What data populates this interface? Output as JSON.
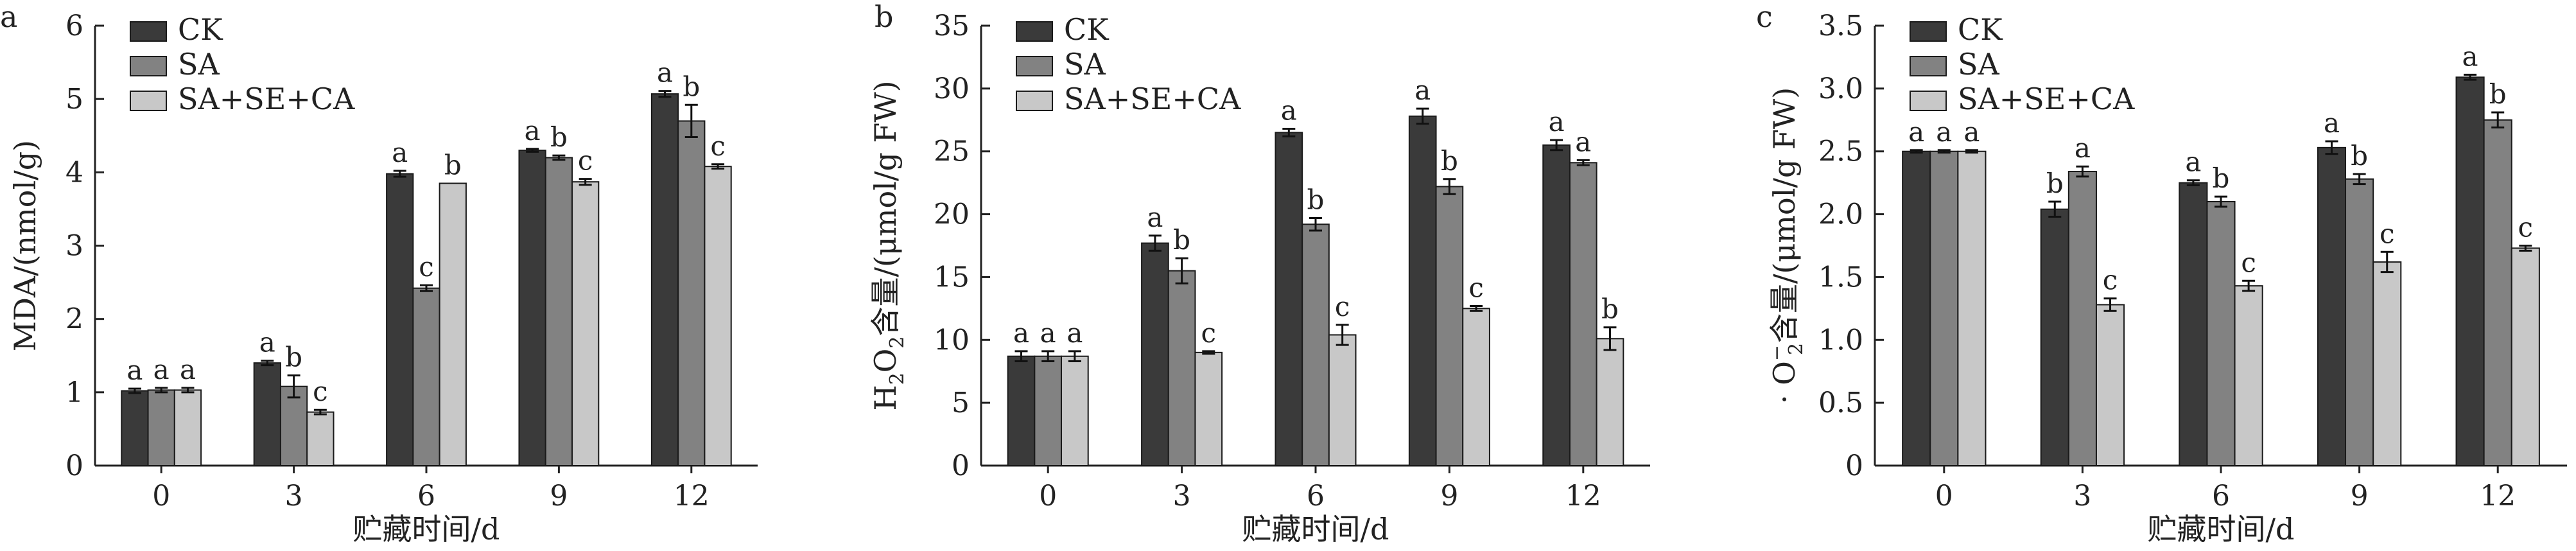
{
  "colors": {
    "CK": "#3a3a3a",
    "SA": "#828282",
    "SA+SE+CA": "#c8c8c8",
    "axis": "#222222"
  },
  "chart_data": [
    {
      "type": "bar",
      "panel": "a",
      "categories": [
        "0",
        "3",
        "6",
        "9",
        "12"
      ],
      "xlabel": "贮藏时间/d",
      "ylabel": "MDA/(nmol/g)",
      "ylim": [
        0,
        6
      ],
      "yticks": [
        "0",
        "1",
        "2",
        "3",
        "4",
        "5",
        "6"
      ],
      "legend_position": "top-left",
      "series": [
        {
          "name": "CK",
          "values": [
            1.02,
            1.4,
            3.98,
            4.3,
            5.07
          ],
          "errors": [
            0.03,
            0.03,
            0.04,
            0.02,
            0.04
          ],
          "sig": [
            "a",
            "a",
            "a",
            "a",
            "a"
          ]
        },
        {
          "name": "SA",
          "values": [
            1.03,
            1.08,
            2.42,
            4.2,
            4.7
          ],
          "errors": [
            0.03,
            0.15,
            0.04,
            0.03,
            0.22
          ],
          "sig": [
            "a",
            "b",
            "c",
            "b",
            "b"
          ]
        },
        {
          "name": "SA+SE+CA",
          "values": [
            1.03,
            0.73,
            3.85,
            3.87,
            4.08
          ],
          "errors": [
            0.03,
            0.03,
            0.0,
            0.04,
            0.03
          ],
          "sig": [
            "a",
            "c",
            "b",
            "c",
            "c"
          ]
        }
      ]
    },
    {
      "type": "bar",
      "panel": "b",
      "categories": [
        "0",
        "3",
        "6",
        "9",
        "12"
      ],
      "xlabel": "贮藏时间/d",
      "ylabel_parts": [
        "H",
        "2",
        "O",
        "2",
        "含量/(μmol/g FW)"
      ],
      "ylim": [
        0,
        35
      ],
      "yticks": [
        "0",
        "5",
        "10",
        "15",
        "20",
        "25",
        "30",
        "35"
      ],
      "legend_position": "top-left",
      "series": [
        {
          "name": "CK",
          "values": [
            8.7,
            17.7,
            26.5,
            27.8,
            25.5
          ],
          "errors": [
            0.4,
            0.6,
            0.3,
            0.6,
            0.4
          ],
          "sig": [
            "a",
            "a",
            "a",
            "a",
            "a"
          ]
        },
        {
          "name": "SA",
          "values": [
            8.7,
            15.5,
            19.2,
            22.2,
            24.1
          ],
          "errors": [
            0.4,
            1.0,
            0.5,
            0.6,
            0.2
          ],
          "sig": [
            "a",
            "b",
            "b",
            "b",
            "a"
          ]
        },
        {
          "name": "SA+SE+CA",
          "values": [
            8.7,
            9.0,
            10.4,
            12.5,
            10.1
          ],
          "errors": [
            0.4,
            0.1,
            0.8,
            0.2,
            0.9
          ],
          "sig": [
            "a",
            "c",
            "c",
            "c",
            "b"
          ]
        }
      ]
    },
    {
      "type": "bar",
      "panel": "c",
      "categories": [
        "0",
        "3",
        "6",
        "9",
        "12"
      ],
      "xlabel": "贮藏时间/d",
      "ylabel_parts": [
        "· O",
        "−",
        "2",
        "含量/(μmol/g FW)"
      ],
      "ylim": [
        0,
        3.5
      ],
      "yticks": [
        "0",
        "0.5",
        "1.0",
        "1.5",
        "2.0",
        "2.5",
        "3.0",
        "3.5"
      ],
      "legend_position": "top-left",
      "series": [
        {
          "name": "CK",
          "values": [
            2.5,
            2.04,
            2.25,
            2.53,
            3.09
          ],
          "errors": [
            0.01,
            0.06,
            0.02,
            0.05,
            0.02
          ],
          "sig": [
            "a",
            "b",
            "a",
            "a",
            "a"
          ]
        },
        {
          "name": "SA",
          "values": [
            2.5,
            2.34,
            2.1,
            2.28,
            2.75
          ],
          "errors": [
            0.01,
            0.04,
            0.04,
            0.04,
            0.06
          ],
          "sig": [
            "a",
            "a",
            "b",
            "b",
            "b"
          ]
        },
        {
          "name": "SA+SE+CA",
          "values": [
            2.5,
            1.28,
            1.43,
            1.62,
            1.73
          ],
          "errors": [
            0.01,
            0.05,
            0.04,
            0.08,
            0.02
          ],
          "sig": [
            "a",
            "c",
            "c",
            "c",
            "c"
          ]
        }
      ]
    }
  ]
}
